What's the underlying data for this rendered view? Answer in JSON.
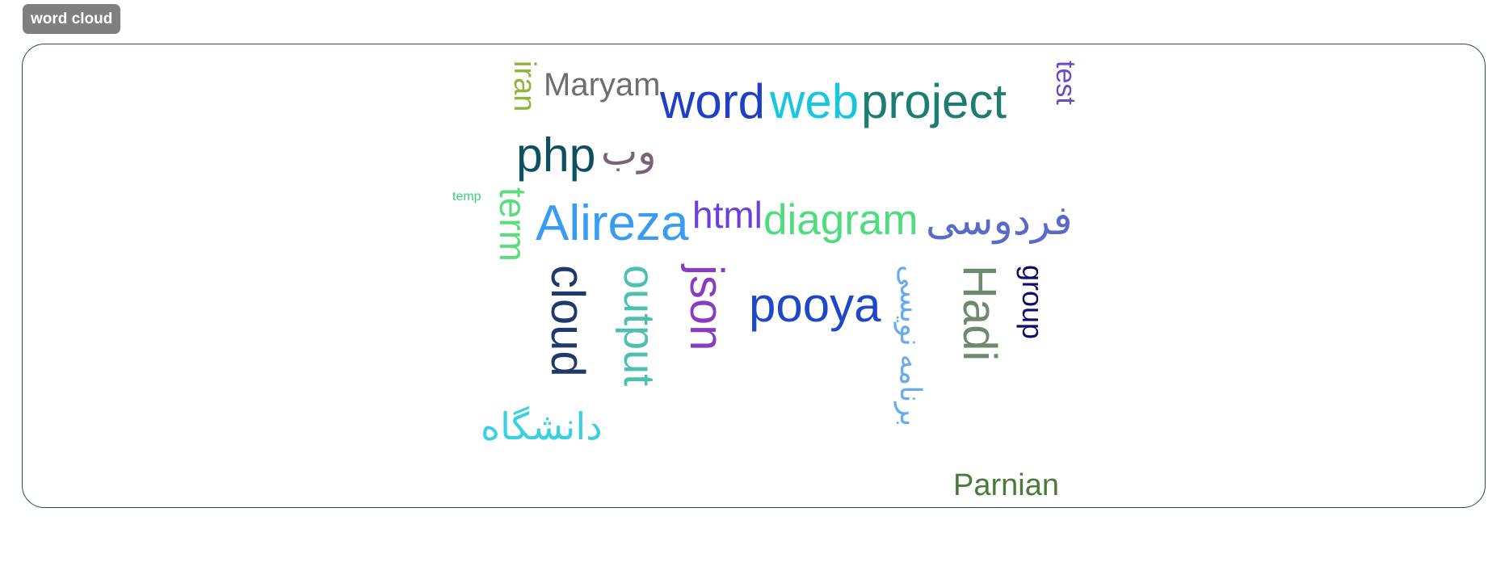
{
  "badge": {
    "label": "word cloud"
  },
  "words": {
    "iran": {
      "text": "iran",
      "color": "#8db53c"
    },
    "maryam": {
      "text": "Maryam",
      "color": "#6e6e6e"
    },
    "word": {
      "text": "word",
      "color": "#1f3fc4"
    },
    "web": {
      "text": "web",
      "color": "#18c6e0"
    },
    "project": {
      "text": "project",
      "color": "#1d7d72"
    },
    "test": {
      "text": "test",
      "color": "#6a4bc4"
    },
    "php": {
      "text": "php",
      "color": "#0e5060"
    },
    "vb": {
      "text": "وب",
      "color": "#7a6278"
    },
    "temp": {
      "text": "temp",
      "color": "#3fcf7a"
    },
    "term": {
      "text": "term",
      "color": "#5bdc7e"
    },
    "alireza": {
      "text": "Alireza",
      "color": "#3a9cf0"
    },
    "html": {
      "text": "html",
      "color": "#6a3fe0"
    },
    "diagram": {
      "text": "diagram",
      "color": "#4fdc7e"
    },
    "ferdowsi": {
      "text": "فردوسی",
      "color": "#5a6ac8"
    },
    "cloud": {
      "text": "cloud",
      "color": "#1f3a6a"
    },
    "output": {
      "text": "output",
      "color": "#4fbfb0"
    },
    "json": {
      "text": "json",
      "color": "#8a3cc0"
    },
    "pooya": {
      "text": "pooya",
      "color": "#1f48c8"
    },
    "barnameh": {
      "text": "برنامه نویسی",
      "color": "#6aaaf0"
    },
    "hadi": {
      "text": "Hadi",
      "color": "#6e8a6e"
    },
    "group": {
      "text": "group",
      "color": "#0e0e6a"
    },
    "daneshgah": {
      "text": "دانشگاه",
      "color": "#3ad0e0"
    },
    "parnian": {
      "text": "Parnian",
      "color": "#4a7a3c"
    }
  }
}
